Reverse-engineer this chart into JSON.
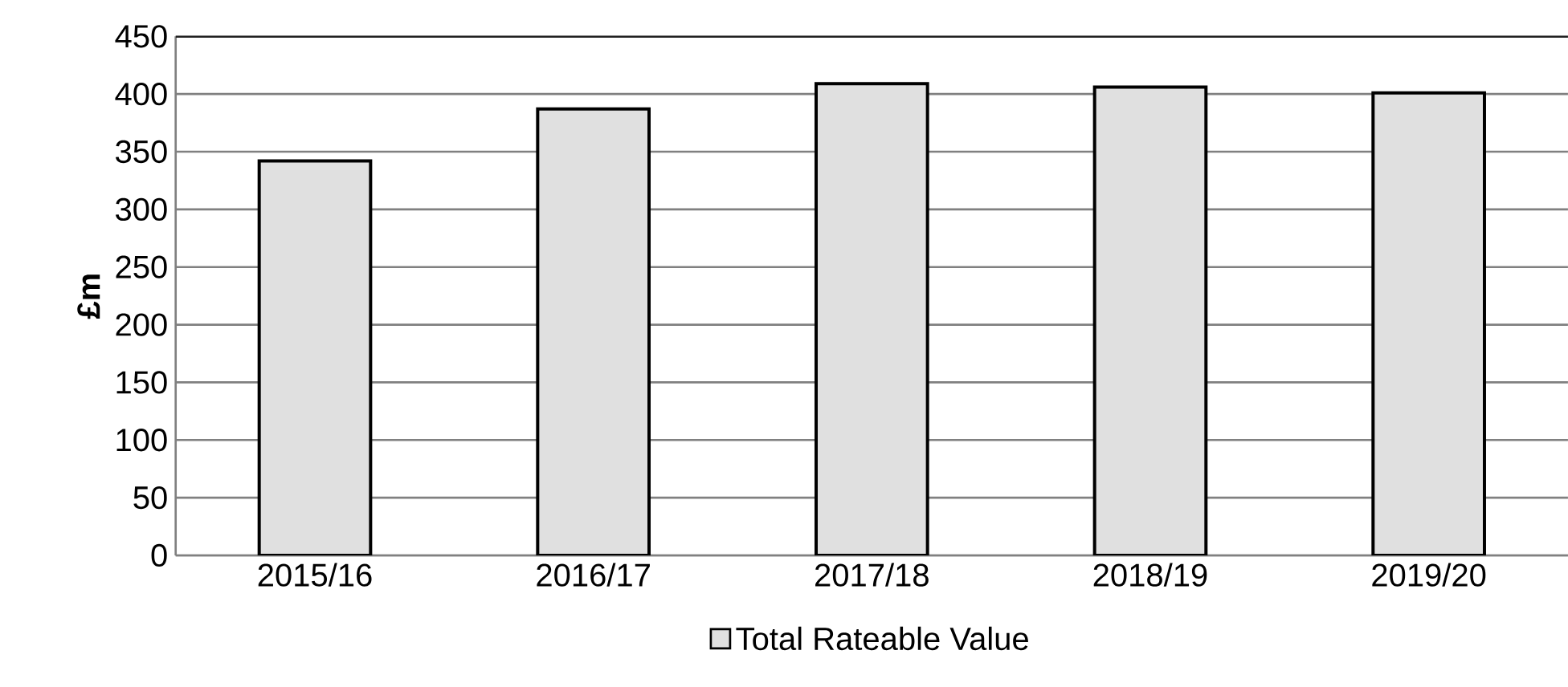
{
  "chart_data": {
    "type": "bar",
    "ylabel": "£m",
    "categories": [
      "2015/16",
      "2016/17",
      "2017/18",
      "2018/19",
      "2019/20"
    ],
    "series": [
      {
        "name": "Total Rateable Value",
        "color": "#e0e0e0",
        "values": [
          342,
          387,
          409,
          406,
          401
        ]
      }
    ],
    "ylim": [
      0,
      450
    ],
    "yticks": [
      0,
      50,
      100,
      150,
      200,
      250,
      300,
      350,
      400,
      450
    ],
    "grid": "y",
    "legend": "bottom"
  }
}
